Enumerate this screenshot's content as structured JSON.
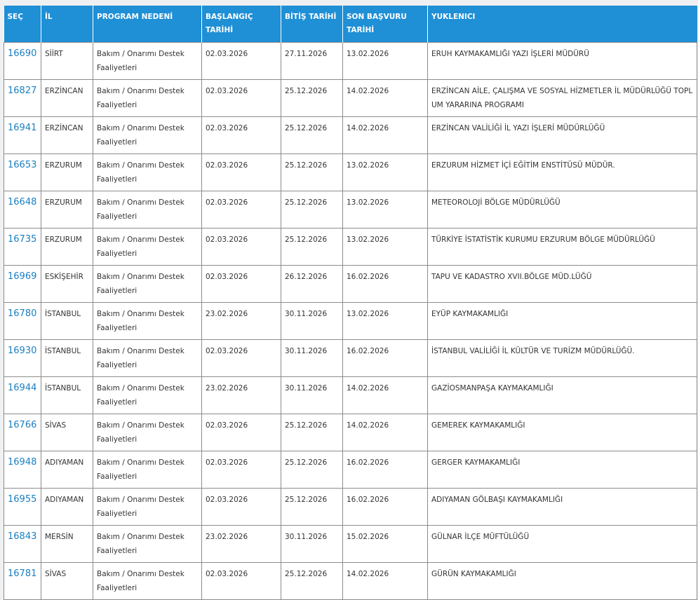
{
  "table": {
    "headers": [
      "SEÇ",
      "İL",
      "PROGRAM NEDENİ",
      "BAŞLANGIÇ TARİHİ",
      "BİTİŞ TARİHİ",
      "SON BAŞVURU TARİHİ",
      "YUKLENICI"
    ],
    "rows": [
      [
        "16690",
        "SİİRT",
        "Bakım / Onarımı Destek Faaliyetleri",
        "02.03.2026",
        "27.11.2026",
        "13.02.2026",
        "ERUH KAYMAKAMLIĞI YAZI İŞLERİ MÜDÜRÜ"
      ],
      [
        "16827",
        "ERZİNCAN",
        "Bakım / Onarımı Destek Faaliyetleri",
        "02.03.2026",
        "25.12.2026",
        "14.02.2026",
        "ERZİNCAN AİLE, ÇALIŞMA VE SOSYAL HİZMETLER İL MÜDÜRLÜĞÜ TOPL UM YARARINA PROGRAMI"
      ],
      [
        "16941",
        "ERZİNCAN",
        "Bakım / Onarımı Destek Faaliyetleri",
        "02.03.2026",
        "25.12.2026",
        "14.02.2026",
        "ERZİNCAN VALİLİĞİ İL YAZI İŞLERİ MÜDÜRLÜĞÜ"
      ],
      [
        "16653",
        "ERZURUM",
        "Bakım / Onarımı Destek Faaliyetleri",
        "02.03.2026",
        "25.12.2026",
        "13.02.2026",
        "ERZURUM HİZMET İÇİ EĞİTİM ENSTİTÜSÜ MÜDÜR."
      ],
      [
        "16648",
        "ERZURUM",
        "Bakım / Onarımı Destek Faaliyetleri",
        "02.03.2026",
        "25.12.2026",
        "13.02.2026",
        "METEOROLOJİ BÖLGE MÜDÜRLÜĞÜ"
      ],
      [
        "16735",
        "ERZURUM",
        "Bakım / Onarımı Destek Faaliyetleri",
        "02.03.2026",
        "25.12.2026",
        "13.02.2026",
        "TÜRKİYE İSTATİSTİK KURUMU ERZURUM BÖLGE MÜDÜRLÜĞÜ"
      ],
      [
        "16969",
        "ESKİŞEHİR",
        "Bakım / Onarımı Destek Faaliyetleri",
        "02.03.2026",
        "26.12.2026",
        "16.02.2026",
        "TAPU VE KADASTRO XVII.BÖLGE MÜD.LÜĞÜ"
      ],
      [
        "16780",
        "İSTANBUL",
        "Bakım / Onarımı Destek Faaliyetleri",
        "23.02.2026",
        "30.11.2026",
        "13.02.2026",
        "EYÜP KAYMAKAMLIĞI"
      ],
      [
        "16930",
        "İSTANBUL",
        "Bakım / Onarımı Destek Faaliyetleri",
        "02.03.2026",
        "30.11.2026",
        "16.02.2026",
        "İSTANBUL VALİLİĞİ İL KÜLTÜR VE TURİZM MÜDÜRLÜĞÜ."
      ],
      [
        "16944",
        "İSTANBUL",
        "Bakım / Onarımı Destek Faaliyetleri",
        "23.02.2026",
        "30.11.2026",
        "14.02.2026",
        "GAZİOSMANPAŞA KAYMAKAMLIĞI"
      ],
      [
        "16766",
        "SİVAS",
        "Bakım / Onarımı Destek Faaliyetleri",
        "02.03.2026",
        "25.12.2026",
        "14.02.2026",
        "GEMEREK KAYMAKAMLIĞI"
      ],
      [
        "16948",
        "ADIYAMAN",
        "Bakım / Onarımı Destek Faaliyetleri",
        "02.03.2026",
        "25.12.2026",
        "16.02.2026",
        "GERGER KAYMAKAMLIĞI"
      ],
      [
        "16955",
        "ADIYAMAN",
        "Bakım / Onarımı Destek Faaliyetleri",
        "02.03.2026",
        "25.12.2026",
        "16.02.2026",
        "ADIYAMAN GÖLBAŞI KAYMAKAMLIĞI"
      ],
      [
        "16843",
        "MERSİN",
        "Bakım / Onarımı Destek Faaliyetleri",
        "23.02.2026",
        "30.11.2026",
        "15.02.2026",
        "GÜLNAR İLÇE MÜFTÜLÜĞÜ"
      ],
      [
        "16781",
        "SİVAS",
        "Bakım / Onarımı Destek Faaliyetleri",
        "02.03.2026",
        "25.12.2026",
        "14.02.2026",
        "GÜRÜN KAYMAKAMLIĞI"
      ]
    ]
  }
}
